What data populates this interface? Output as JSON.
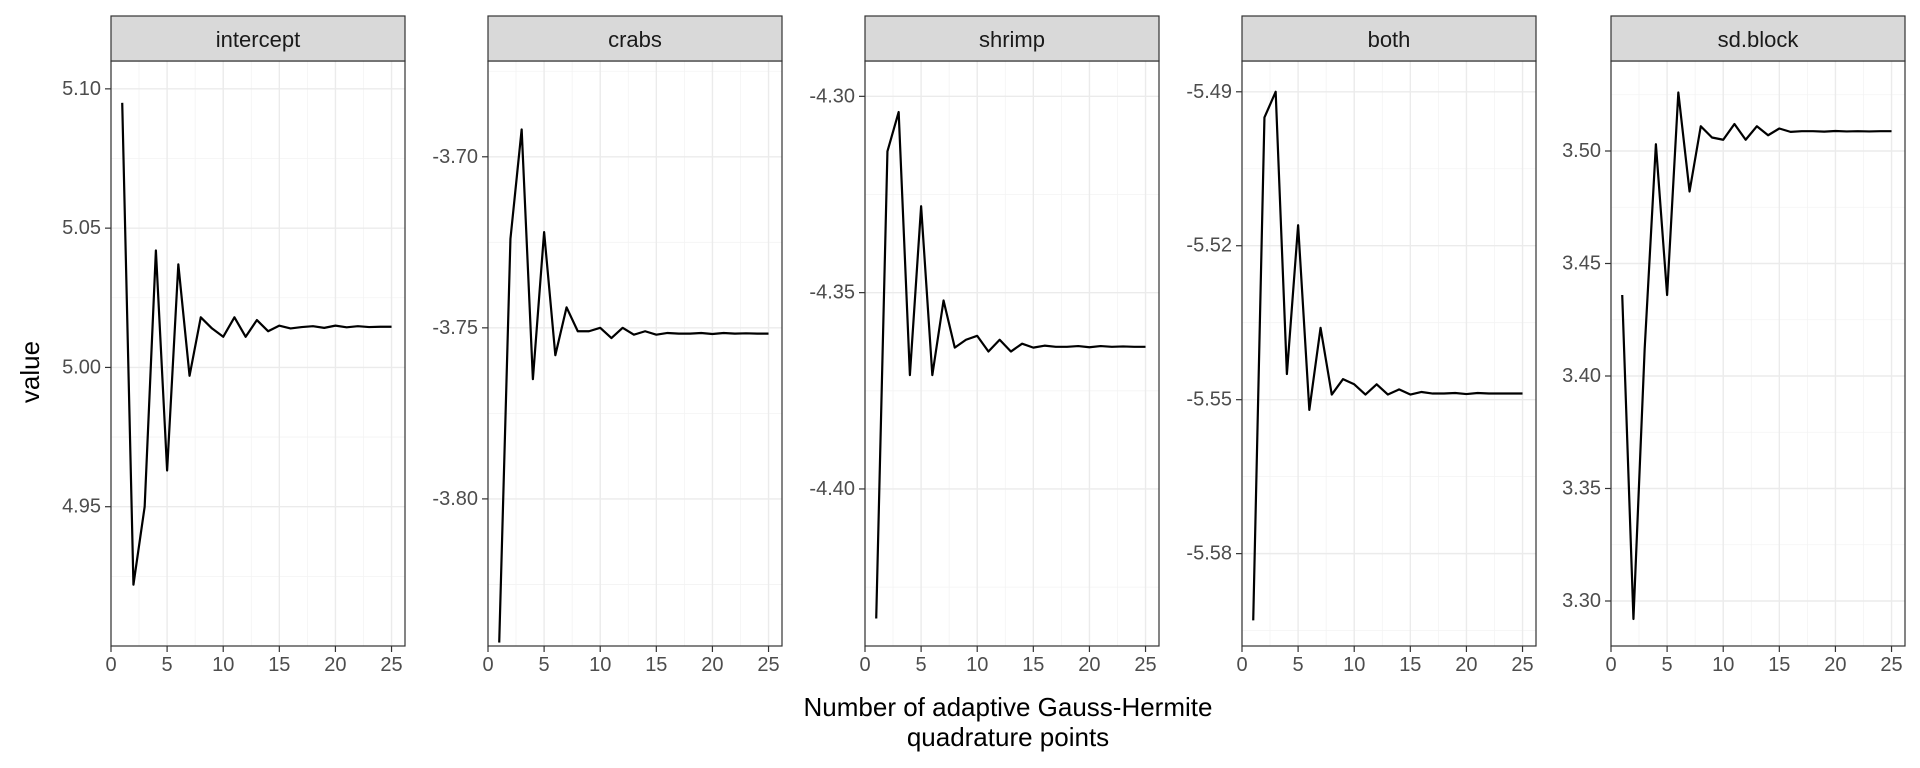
{
  "chart_data": {
    "type": "line",
    "facet": true,
    "xlabel": "Number of adaptive Gauss-Hermite\nquadrature points",
    "ylabel": "value",
    "x_ticks": [
      0,
      5,
      10,
      15,
      20,
      25
    ],
    "x_range": [
      0,
      26.2
    ],
    "grid": true,
    "panels": [
      {
        "name": "intercept",
        "y_range": [
          4.9,
          5.11
        ],
        "y_ticks": [
          "4.95",
          "5.00",
          "5.05",
          "5.10"
        ],
        "x": [
          1,
          2,
          3,
          4,
          5,
          6,
          7,
          8,
          9,
          10,
          11,
          12,
          13,
          14,
          15,
          16,
          17,
          18,
          19,
          20,
          21,
          22,
          23,
          24,
          25
        ],
        "values": [
          5.095,
          4.922,
          4.95,
          5.042,
          4.963,
          5.037,
          4.997,
          5.018,
          5.014,
          5.011,
          5.018,
          5.011,
          5.017,
          5.013,
          5.015,
          5.014,
          5.0145,
          5.0148,
          5.0142,
          5.015,
          5.0144,
          5.0148,
          5.0145,
          5.0146,
          5.0146
        ]
      },
      {
        "name": "crabs",
        "y_range": [
          -3.843,
          -3.672
        ],
        "y_ticks": [
          "-3.80",
          "-3.75",
          "-3.70"
        ],
        "x": [
          1,
          2,
          3,
          4,
          5,
          6,
          7,
          8,
          9,
          10,
          11,
          12,
          13,
          14,
          15,
          16,
          17,
          18,
          19,
          20,
          21,
          22,
          23,
          24,
          25
        ],
        "values": [
          -3.842,
          -3.724,
          -3.692,
          -3.765,
          -3.722,
          -3.758,
          -3.744,
          -3.751,
          -3.751,
          -3.75,
          -3.753,
          -3.75,
          -3.752,
          -3.751,
          -3.752,
          -3.7515,
          -3.7517,
          -3.7517,
          -3.7515,
          -3.7518,
          -3.7515,
          -3.7517,
          -3.7516,
          -3.7517,
          -3.7517
        ]
      },
      {
        "name": "shrimp",
        "y_range": [
          -4.44,
          -4.291
        ],
        "y_ticks": [
          "-4.40",
          "-4.35",
          "-4.30"
        ],
        "x": [
          1,
          2,
          3,
          4,
          5,
          6,
          7,
          8,
          9,
          10,
          11,
          12,
          13,
          14,
          15,
          16,
          17,
          18,
          19,
          20,
          21,
          22,
          23,
          24,
          25
        ],
        "values": [
          -4.433,
          -4.314,
          -4.304,
          -4.371,
          -4.328,
          -4.371,
          -4.352,
          -4.364,
          -4.362,
          -4.361,
          -4.365,
          -4.362,
          -4.365,
          -4.363,
          -4.364,
          -4.3635,
          -4.3638,
          -4.3638,
          -4.3636,
          -4.3639,
          -4.3636,
          -4.3638,
          -4.3637,
          -4.3638,
          -4.3638
        ]
      },
      {
        "name": "both",
        "y_range": [
          -5.598,
          -5.484
        ],
        "y_ticks": [
          "-5.58",
          "-5.55",
          "-5.52",
          "-5.49"
        ],
        "x": [
          1,
          2,
          3,
          4,
          5,
          6,
          7,
          8,
          9,
          10,
          11,
          12,
          13,
          14,
          15,
          16,
          17,
          18,
          19,
          20,
          21,
          22,
          23,
          24,
          25
        ],
        "values": [
          -5.593,
          -5.495,
          -5.49,
          -5.545,
          -5.516,
          -5.552,
          -5.536,
          -5.549,
          -5.546,
          -5.547,
          -5.549,
          -5.547,
          -5.549,
          -5.548,
          -5.549,
          -5.5485,
          -5.5488,
          -5.5488,
          -5.5487,
          -5.5489,
          -5.5487,
          -5.5488,
          -5.5488,
          -5.5488,
          -5.5488
        ]
      },
      {
        "name": "sd.block",
        "y_range": [
          3.28,
          3.54
        ],
        "y_ticks": [
          "3.30",
          "3.35",
          "3.40",
          "3.45",
          "3.50"
        ],
        "x": [
          1,
          2,
          3,
          4,
          5,
          6,
          7,
          8,
          9,
          10,
          11,
          12,
          13,
          14,
          15,
          16,
          17,
          18,
          19,
          20,
          21,
          22,
          23,
          24,
          25
        ],
        "values": [
          3.436,
          3.292,
          3.412,
          3.503,
          3.436,
          3.526,
          3.482,
          3.511,
          3.506,
          3.505,
          3.512,
          3.505,
          3.511,
          3.507,
          3.51,
          3.5085,
          3.5088,
          3.5088,
          3.5086,
          3.5089,
          3.5087,
          3.5088,
          3.5087,
          3.5088,
          3.5088
        ]
      }
    ]
  }
}
